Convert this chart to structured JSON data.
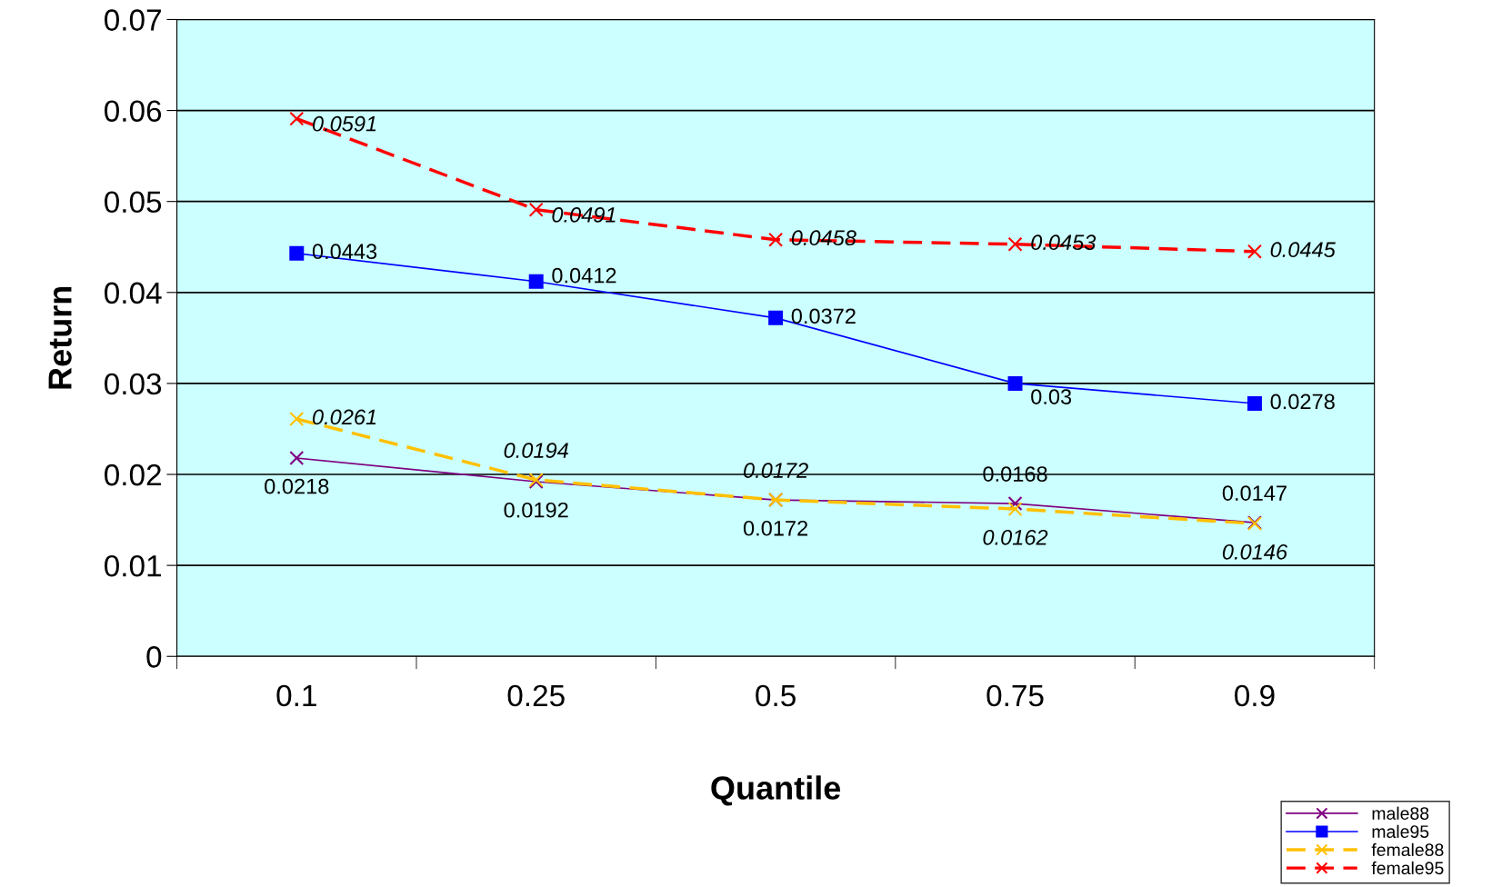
{
  "chart_data": {
    "type": "line",
    "xlabel": "Quantile",
    "ylabel": "Return",
    "categories": [
      "0.1",
      "0.25",
      "0.5",
      "0.75",
      "0.9"
    ],
    "series": [
      {
        "name": "male88",
        "color": "#800080",
        "values": [
          0.0218,
          0.0192,
          0.0172,
          0.0168,
          0.0147
        ],
        "marker": "cross",
        "line_style": "solid"
      },
      {
        "name": "male95",
        "color": "#0000ff",
        "values": [
          0.0443,
          0.0412,
          0.0372,
          0.03,
          0.0278
        ],
        "marker": "square",
        "line_style": "solid"
      },
      {
        "name": "female88",
        "color": "#ffc000",
        "values": [
          0.0261,
          0.0194,
          0.0172,
          0.0162,
          0.0146
        ],
        "marker": "cross",
        "line_style": "dashed"
      },
      {
        "name": "female95",
        "color": "#ff0000",
        "values": [
          0.0591,
          0.0491,
          0.0458,
          0.0453,
          0.0445
        ],
        "marker": "cross",
        "line_style": "dashed"
      }
    ],
    "ylim": [
      0,
      0.07
    ],
    "yticks": [
      {
        "value": 0,
        "label": "0"
      },
      0.01,
      0.02,
      0.03,
      0.04,
      0.05,
      0.06,
      0.07
    ],
    "grid": "y",
    "legend": "bottom right",
    "data_labels": true
  }
}
